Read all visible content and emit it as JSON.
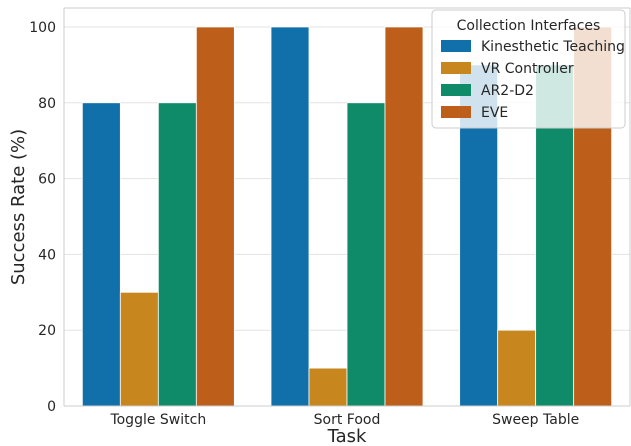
{
  "chart_data": {
    "type": "bar",
    "xlabel": "Task",
    "ylabel": "Success Rate (%)",
    "categories": [
      "Toggle Switch",
      "Sort Food",
      "Sweep Table"
    ],
    "ylim": [
      0,
      105
    ],
    "yticks": [
      0,
      20,
      40,
      60,
      80,
      100
    ],
    "grid": "horizontal",
    "legend": {
      "title": "Collection Interfaces",
      "placement": "top-right"
    },
    "series": [
      {
        "name": "Kinesthetic Teaching",
        "color": "#1170aa",
        "values": [
          80,
          100,
          90
        ]
      },
      {
        "name": "VR Controller",
        "color": "#c8861f",
        "values": [
          30,
          10,
          20
        ]
      },
      {
        "name": "AR2-D2",
        "color": "#0f8b6a",
        "values": [
          80,
          80,
          90
        ]
      },
      {
        "name": "EVE",
        "color": "#bd5e1b",
        "values": [
          100,
          100,
          100
        ]
      }
    ]
  }
}
